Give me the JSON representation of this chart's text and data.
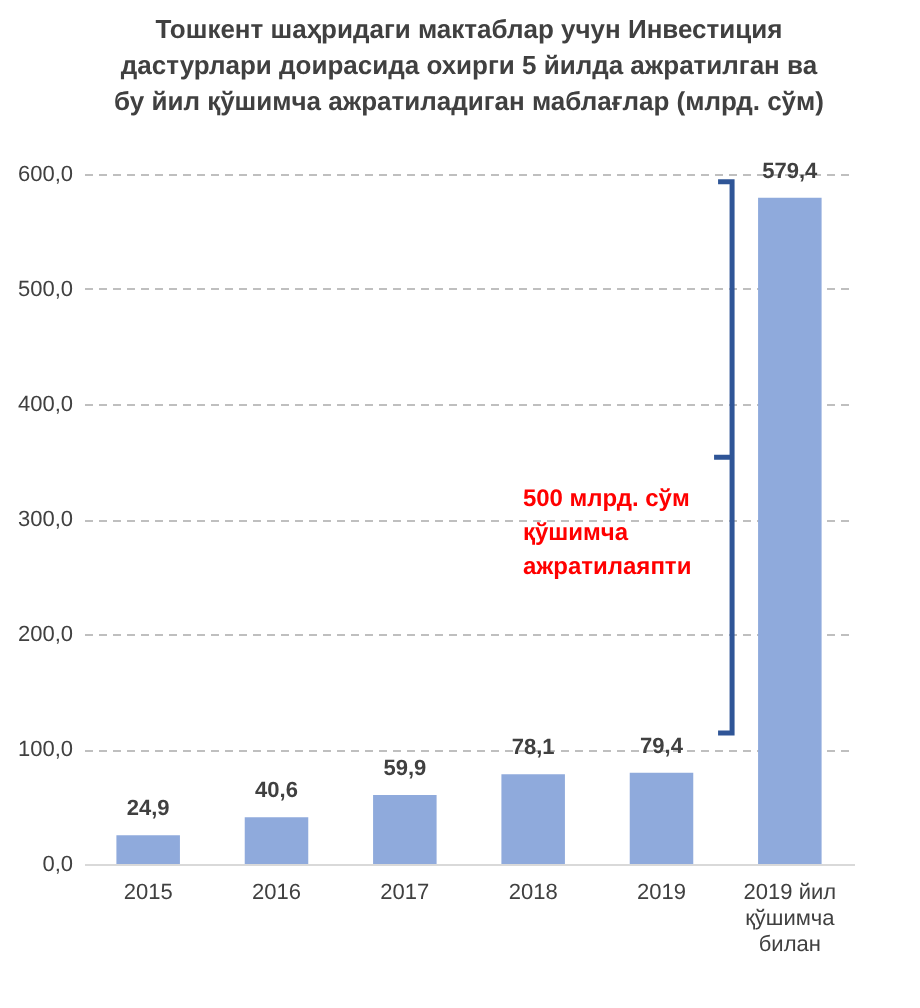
{
  "chart_data": {
    "type": "bar",
    "title": "Тошкент шаҳридаги мактаблар учун Инвестиция дастурлари доирасида охирги 5 йилда ажратилган ва бу йил қўшимча ажратиладиган маблағлар (млрд. сўм)",
    "categories": [
      "2015",
      "2016",
      "2017",
      "2018",
      "2019",
      "2019 йил қўшимча билан"
    ],
    "values": [
      24.9,
      40.6,
      59.9,
      78.1,
      79.4,
      579.4
    ],
    "value_labels": [
      "24,9",
      "40,6",
      "59,9",
      "78,1",
      "79,4",
      "579,4"
    ],
    "color": "#8faadc",
    "ylim": [
      0,
      600
    ],
    "yticks": [
      {
        "value": 0,
        "label": "0,0"
      },
      {
        "value": 100,
        "label": "100,0"
      },
      {
        "value": 200,
        "label": "200,0"
      },
      {
        "value": 300,
        "label": "300,0"
      },
      {
        "value": 400,
        "label": "400,0"
      },
      {
        "value": 500,
        "label": "500,0"
      },
      {
        "value": 600,
        "label": "600,0"
      }
    ],
    "grid": "y",
    "annotations": [
      "500 млрд. сўм қўшимча ажратилаяпти"
    ]
  }
}
